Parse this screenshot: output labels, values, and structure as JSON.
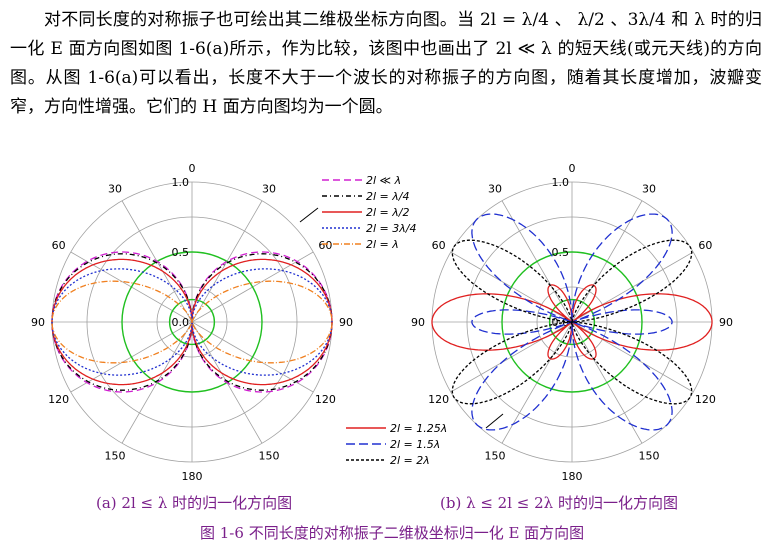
{
  "paragraph": {
    "text": "对不同长度的对称振子也可绘出其二维极坐标方向图。当 2l = λ/4 、 λ/2 、3λ/4 和 λ 时的归一化 E 面方向图如图 1-6(a)所示，作为比较，该图中也画出了 2l ≪ λ 的短天线(或元天线)的方向图。从图 1-6(a)可以看出，长度不大于一个波长的对称振子的方向图，随着其长度增加，波瓣变窄，方向性增强。它们的 H 面方向图均为一个圆。"
  },
  "figure_a": {
    "caption": "(a) 2l ≤ λ 时的归一化方向图",
    "angle_labels": [
      "0",
      "30",
      "60",
      "90",
      "120",
      "150",
      "180",
      "150",
      "120",
      "90",
      "60",
      "30"
    ],
    "radius_labels": [
      "0.0",
      "0.5",
      "1.0"
    ],
    "legend": [
      "2l ≪ λ",
      "2l = λ/4",
      "2l = λ/2",
      "2l = 3λ/4",
      "2l = λ"
    ]
  },
  "figure_b": {
    "caption": "(b)  λ ≤ 2l ≤ 2λ 时的归一化方向图",
    "angle_labels": [
      "0",
      "30",
      "60",
      "90",
      "120",
      "150",
      "180",
      "150",
      "120",
      "90",
      "60",
      "30"
    ],
    "radius_labels": [
      "0.0",
      "0.5",
      "1.0"
    ],
    "legend": [
      "2l = 1.25λ",
      "2l = 1.5λ",
      "2l = 2λ"
    ]
  },
  "figure_caption": "图 1-6  不同长度的对称振子二维极坐标归一化 E 面方向图",
  "colors": {
    "short_dipole": "#d020d0",
    "quarter_wave": "#000000",
    "half_wave": "#e02020",
    "three_quarter_wave": "#2030d0",
    "full_wave": "#f08020",
    "wave_1_25": "#e02020",
    "wave_1_5": "#2030d0",
    "wave_2": "#000000",
    "unit_circle": "#20c020",
    "grid": "#a0a0a0",
    "caption": "#7a1f8a"
  }
}
